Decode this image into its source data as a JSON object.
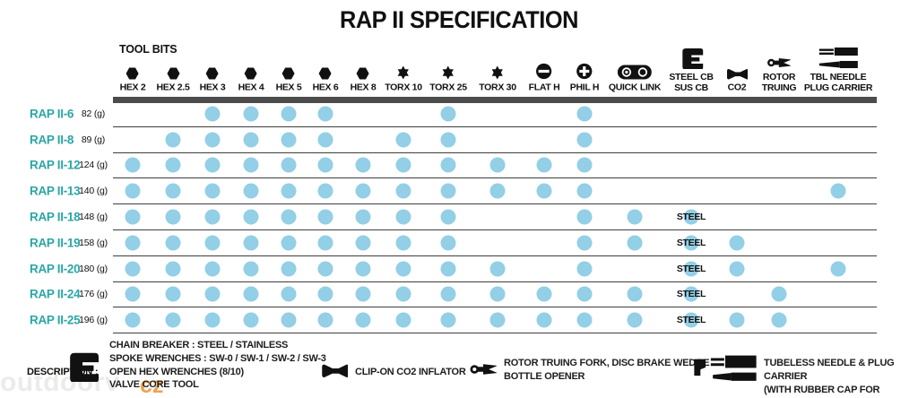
{
  "title": "RAP II SPECIFICATION",
  "colors": {
    "teal": "#2aa6a6",
    "dot_blue": "#93cfe6",
    "bar_gray": "#4c4c4c",
    "line_gray": "#3e3e3e",
    "watermark_gray": "#ebebe8",
    "watermark_orange": "#f2a04e"
  },
  "chart_data": {
    "type": "table",
    "title": "RAP II SPECIFICATION",
    "tool_bits_label": "TOOL BITS",
    "steel_cell_text": "STEEL",
    "columns": [
      {
        "id": "hex2",
        "label_lines": [
          "HEX 2"
        ],
        "icon": "hex"
      },
      {
        "id": "hex25",
        "label_lines": [
          "HEX 2.5"
        ],
        "icon": "hex"
      },
      {
        "id": "hex3",
        "label_lines": [
          "HEX 3"
        ],
        "icon": "hex"
      },
      {
        "id": "hex4",
        "label_lines": [
          "HEX 4"
        ],
        "icon": "hex"
      },
      {
        "id": "hex5",
        "label_lines": [
          "HEX 5"
        ],
        "icon": "hex"
      },
      {
        "id": "hex6",
        "label_lines": [
          "HEX 6"
        ],
        "icon": "hex"
      },
      {
        "id": "hex8",
        "label_lines": [
          "HEX 8"
        ],
        "icon": "hex"
      },
      {
        "id": "torx10",
        "label_lines": [
          "TORX 10"
        ],
        "icon": "torx"
      },
      {
        "id": "torx25",
        "label_lines": [
          "TORX 25"
        ],
        "icon": "torx"
      },
      {
        "id": "torx30",
        "label_lines": [
          "TORX 30"
        ],
        "icon": "torx"
      },
      {
        "id": "flath",
        "label_lines": [
          "FLAT H"
        ],
        "icon": "flat"
      },
      {
        "id": "philh",
        "label_lines": [
          "PHIL H"
        ],
        "icon": "phil"
      },
      {
        "id": "quicklink",
        "label_lines": [
          "QUICK LINK"
        ],
        "icon": "quicklink"
      },
      {
        "id": "steelcb",
        "label_lines": [
          "STEEL CB",
          "SUS CB"
        ],
        "icon": "chainbreaker"
      },
      {
        "id": "co2",
        "label_lines": [
          "CO2"
        ],
        "icon": "co2"
      },
      {
        "id": "rotor",
        "label_lines": [
          "ROTOR",
          "TRUING"
        ],
        "icon": "rotor"
      },
      {
        "id": "tbl",
        "label_lines": [
          "TBL NEEDLE",
          "PLUG CARRIER"
        ],
        "icon": "needle"
      }
    ],
    "rows": [
      {
        "model": "RAP II-6",
        "weight": "82 (g)",
        "includes": [
          "hex3",
          "hex4",
          "hex5",
          "hex6",
          "torx25",
          "philh"
        ]
      },
      {
        "model": "RAP II-8",
        "weight": "89 (g)",
        "includes": [
          "hex25",
          "hex3",
          "hex4",
          "hex5",
          "hex6",
          "torx10",
          "torx25",
          "philh"
        ]
      },
      {
        "model": "RAP II-12",
        "weight": "124 (g)",
        "includes": [
          "hex2",
          "hex25",
          "hex3",
          "hex4",
          "hex5",
          "hex6",
          "hex8",
          "torx10",
          "torx25",
          "torx30",
          "flath",
          "philh"
        ]
      },
      {
        "model": "RAP II-13",
        "weight": "140 (g)",
        "includes": [
          "hex2",
          "hex25",
          "hex3",
          "hex4",
          "hex5",
          "hex6",
          "hex8",
          "torx10",
          "torx25",
          "torx30",
          "flath",
          "philh",
          "tbl"
        ]
      },
      {
        "model": "RAP II-18",
        "weight": "148 (g)",
        "includes": [
          "hex2",
          "hex25",
          "hex3",
          "hex4",
          "hex5",
          "hex6",
          "hex8",
          "torx10",
          "torx25",
          "philh",
          "quicklink",
          "steelcb"
        ]
      },
      {
        "model": "RAP II-19",
        "weight": "158 (g)",
        "includes": [
          "hex2",
          "hex25",
          "hex3",
          "hex4",
          "hex5",
          "hex6",
          "hex8",
          "torx10",
          "torx25",
          "philh",
          "quicklink",
          "steelcb",
          "co2"
        ]
      },
      {
        "model": "RAP II-20",
        "weight": "180 (g)",
        "includes": [
          "hex2",
          "hex25",
          "hex3",
          "hex4",
          "hex5",
          "hex6",
          "hex8",
          "torx10",
          "torx25",
          "torx30",
          "philh",
          "steelcb",
          "co2",
          "tbl"
        ]
      },
      {
        "model": "RAP II-24",
        "weight": "176 (g)",
        "includes": [
          "hex2",
          "hex25",
          "hex3",
          "hex4",
          "hex5",
          "hex6",
          "hex8",
          "torx10",
          "torx25",
          "torx30",
          "flath",
          "philh",
          "quicklink",
          "steelcb",
          "rotor"
        ]
      },
      {
        "model": "RAP II-25",
        "weight": "196 (g)",
        "includes": [
          "hex2",
          "hex25",
          "hex3",
          "hex4",
          "hex5",
          "hex6",
          "hex8",
          "torx10",
          "torx25",
          "torx30",
          "flath",
          "philh",
          "quicklink",
          "steelcb",
          "co2",
          "rotor"
        ]
      }
    ]
  },
  "footer": {
    "description_label": "DESCRIPTION :",
    "items": [
      {
        "icon": "chainbreaker",
        "lines": [
          "CHAIN BREAKER : STEEL / STAINLESS",
          "SPOKE WRENCHES : SW-0 / SW-1 / SW-2 / SW-3",
          "OPEN HEX WRENCHES (8/10)",
          "VALVE CORE TOOL"
        ]
      },
      {
        "icon": "co2",
        "lines": [
          "CLIP-ON CO2 INFLATOR"
        ]
      },
      {
        "icon": "rotor",
        "lines": [
          "ROTOR TRUING FORK, DISC BRAKE WEDGE",
          "BOTTLE OPENER"
        ]
      },
      {
        "icon": "needlefoot",
        "lines": [
          "TUBELESS NEEDLE & PLUG CARRIER",
          "(WITH RUBBER CAP FOR PROTECTION)"
        ]
      }
    ]
  },
  "watermark": {
    "gray_text": "outdoorv",
    "orange_text": "cz"
  }
}
